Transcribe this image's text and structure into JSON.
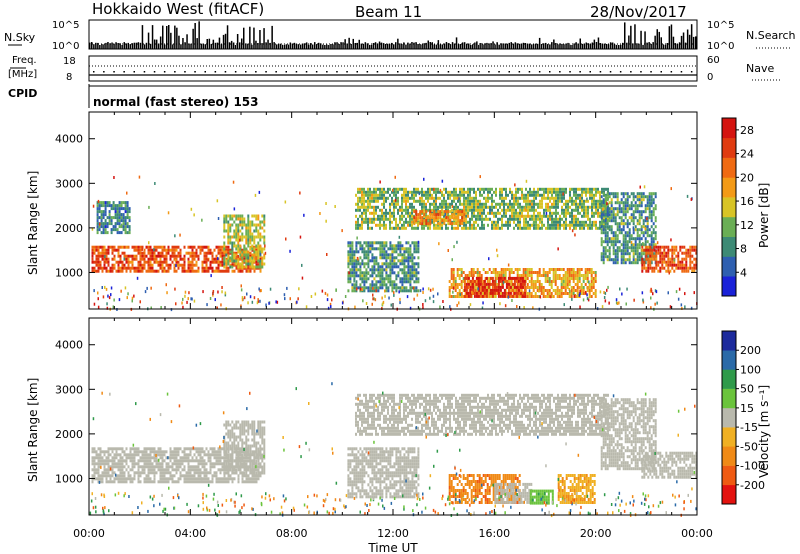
{
  "header": {
    "station": "Hokkaido West (fitACF)",
    "beam": "Beam 11",
    "date": "28/Nov/2017"
  },
  "top_panels": {
    "nsky_label": "N.Sky",
    "nsky_ticks": [
      "10^5",
      "10^0"
    ],
    "nsearch_label": "N.Search",
    "nsearch_ticks": [
      "10^5",
      "10^0"
    ],
    "freq_label_1": "Freq.",
    "freq_label_2": "[MHz]",
    "freq_ticks": [
      "18",
      "8"
    ],
    "nave_label": "Nave",
    "nave_ticks": [
      "60",
      "0"
    ],
    "cpid_label": "CPID",
    "cpid_text": "normal (fast stereo) 153"
  },
  "colors": {
    "power": [
      "#1a22d8",
      "#2e5fb0",
      "#3d8a75",
      "#6aae55",
      "#d8c426",
      "#f39a17",
      "#ef6a12",
      "#e03b10",
      "#d41410"
    ],
    "velocity": [
      "#e3120f",
      "#ef5a12",
      "#f08a16",
      "#f0b023",
      "#b9b9ad",
      "#6bc43c",
      "#2f9a4a",
      "#2a6aa8",
      "#1c2a9c"
    ]
  },
  "chart_data": [
    {
      "type": "heatmap",
      "name": "power",
      "xlabel": "",
      "ylabel": "Slant Range [km]",
      "x_ticks": [
        "00:00",
        "04:00",
        "08:00",
        "12:00",
        "16:00",
        "20:00",
        "00:00"
      ],
      "xlim_hours": [
        0,
        24
      ],
      "y_ticks": [
        1000,
        2000,
        3000,
        4000
      ],
      "ylim_km": [
        180,
        4600
      ],
      "colorbar_label": "Power [dB]",
      "colorbar_ticks": [
        4,
        8,
        12,
        16,
        20,
        24,
        28
      ],
      "colorbar_range": [
        0,
        30
      ],
      "regions": [
        {
          "t0": 0.1,
          "t1": 6.8,
          "r0": 1000,
          "r1": 1600,
          "value": 24
        },
        {
          "t0": 0.3,
          "t1": 1.6,
          "r0": 1900,
          "r1": 2600,
          "value": 8
        },
        {
          "t0": 5.3,
          "t1": 6.9,
          "r0": 1100,
          "r1": 2300,
          "value": 14
        },
        {
          "t0": 10.5,
          "t1": 20.5,
          "r0": 2000,
          "r1": 2900,
          "value": 12
        },
        {
          "t0": 12.8,
          "t1": 14.8,
          "r0": 2100,
          "r1": 2400,
          "value": 20
        },
        {
          "t0": 14.2,
          "t1": 20.0,
          "r0": 450,
          "r1": 1100,
          "value": 18
        },
        {
          "t0": 14.8,
          "t1": 17.2,
          "r0": 450,
          "r1": 900,
          "value": 27
        },
        {
          "t0": 10.2,
          "t1": 13.0,
          "r0": 600,
          "r1": 1700,
          "value": 9
        },
        {
          "t0": 20.2,
          "t1": 22.4,
          "r0": 1200,
          "r1": 2800,
          "value": 9
        },
        {
          "t0": 21.8,
          "t1": 24.0,
          "r0": 1000,
          "r1": 1600,
          "value": 24
        }
      ]
    },
    {
      "type": "heatmap",
      "name": "velocity",
      "xlabel": "Time UT",
      "ylabel": "Slant Range [km]",
      "x_ticks": [
        "00:00",
        "04:00",
        "08:00",
        "12:00",
        "16:00",
        "20:00",
        "00:00"
      ],
      "xlim_hours": [
        0,
        24
      ],
      "y_ticks": [
        1000,
        2000,
        3000,
        4000
      ],
      "ylim_km": [
        180,
        4600
      ],
      "colorbar_label": "Velocity [m s⁻¹]",
      "colorbar_ticks": [
        -200,
        -100,
        -50,
        -15,
        15,
        50,
        100,
        200
      ],
      "regions": [
        {
          "t0": 0.1,
          "t1": 6.8,
          "r0": 900,
          "r1": 1700,
          "value": 0
        },
        {
          "t0": 5.3,
          "t1": 6.9,
          "r0": 1100,
          "r1": 2300,
          "value": 0
        },
        {
          "t0": 10.5,
          "t1": 20.5,
          "r0": 2000,
          "r1": 2900,
          "value": 0
        },
        {
          "t0": 10.2,
          "t1": 13.0,
          "r0": 600,
          "r1": 1700,
          "value": 0
        },
        {
          "t0": 14.2,
          "t1": 17.0,
          "r0": 450,
          "r1": 1100,
          "value": -90
        },
        {
          "t0": 16.0,
          "t1": 17.5,
          "r0": 450,
          "r1": 900,
          "value": 0
        },
        {
          "t0": 17.4,
          "t1": 18.3,
          "r0": 450,
          "r1": 750,
          "value": 40
        },
        {
          "t0": 18.5,
          "t1": 20.0,
          "r0": 450,
          "r1": 1100,
          "value": -40
        },
        {
          "t0": 20.2,
          "t1": 22.4,
          "r0": 1200,
          "r1": 2800,
          "value": 0
        },
        {
          "t0": 21.8,
          "t1": 24.0,
          "r0": 1000,
          "r1": 1600,
          "value": 0
        }
      ]
    }
  ]
}
